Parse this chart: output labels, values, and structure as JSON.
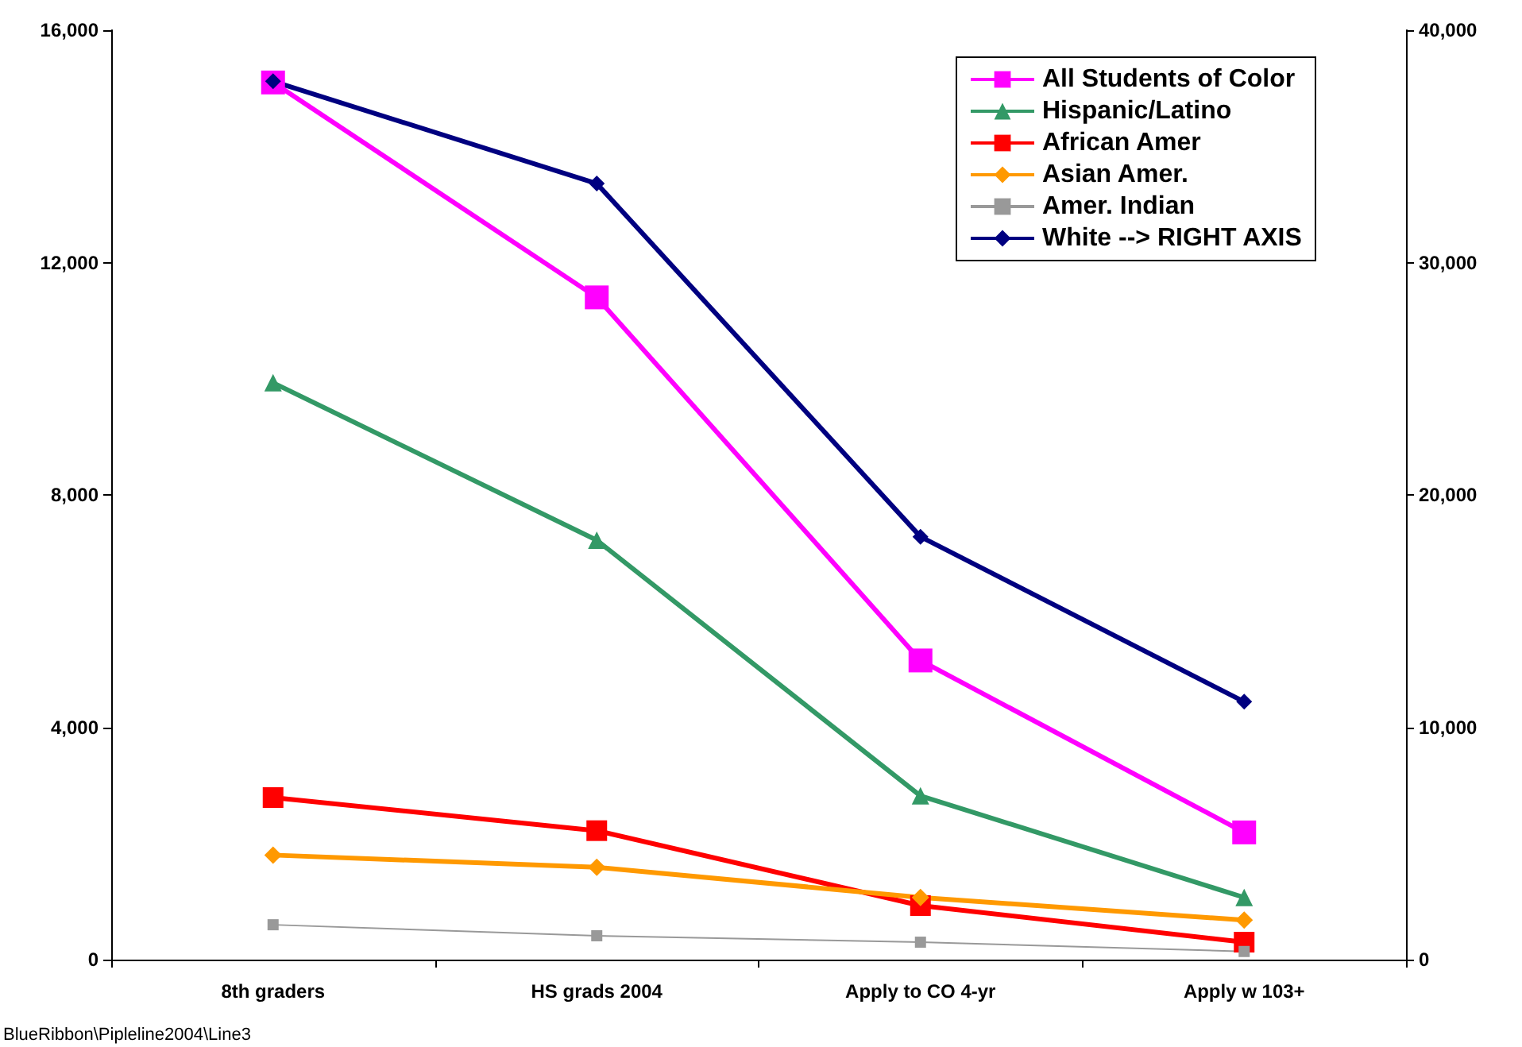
{
  "chart_data": {
    "type": "line",
    "categories": [
      "8th graders",
      "HS grads 2004",
      "Apply to CO 4-yr",
      "Apply w 103+"
    ],
    "series": [
      {
        "name": "All Students of Color",
        "color": "#ff00ff",
        "marker": "square",
        "values": [
          15100,
          11400,
          5150,
          2190
        ]
      },
      {
        "name": "Hispanic/Latino",
        "color": "#339966",
        "marker": "triangle",
        "values": [
          9930,
          7220,
          2820,
          1070
        ]
      },
      {
        "name": "African Amer",
        "color": "#ff0000",
        "marker": "square",
        "values": [
          2790,
          2220,
          930,
          300
        ]
      },
      {
        "name": "Asian Amer.",
        "color": "#ff9900",
        "marker": "diamond",
        "values": [
          1800,
          1590,
          1070,
          680
        ]
      },
      {
        "name": "Amer. Indian",
        "color": "#999999",
        "marker": "square",
        "values": [
          600,
          410,
          300,
          140
        ]
      },
      {
        "name": "White --> RIGHT AXIS",
        "color": "#000080",
        "marker": "diamond",
        "axis": "y2",
        "values": [
          37800,
          33400,
          18200,
          11100
        ]
      }
    ],
    "ylim": [
      0,
      16000
    ],
    "yticks": [
      0,
      {
        "value": 4000,
        "label": "4,000"
      },
      {
        "value": 8000,
        "label": "8,000"
      },
      {
        "value": 12000,
        "label": "12,000"
      },
      {
        "value": 16000,
        "label": "16,000"
      }
    ],
    "y2lim": [
      0,
      40000
    ],
    "y2ticks": [
      0,
      {
        "value": 10000,
        "label": "10,000"
      },
      {
        "value": 20000,
        "label": "20,000"
      },
      {
        "value": 30000,
        "label": "30,000"
      },
      {
        "value": 40000,
        "label": "40,000"
      }
    ],
    "legend": "top right",
    "grid": false,
    "annotations": [
      "BlueRibbon\\Pipleline2004\\Line3"
    ]
  }
}
